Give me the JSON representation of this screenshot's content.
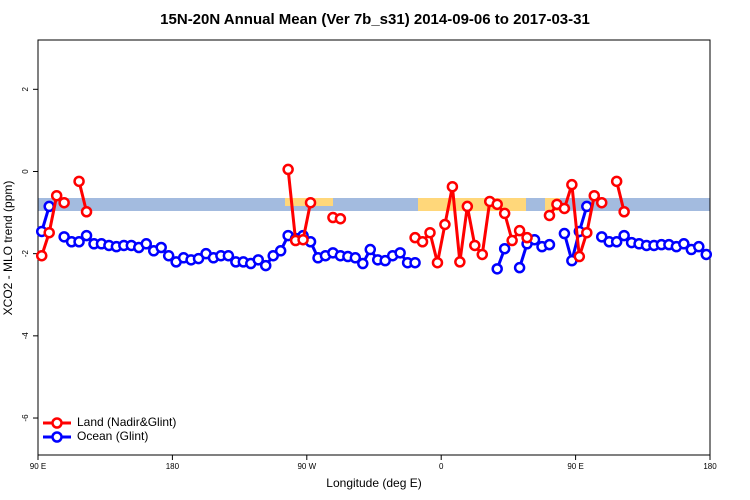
{
  "chart_data": {
    "type": "line",
    "title": "15N-20N Annual Mean (Ver 7b_s31)   2014-09-06 to 2017-03-31",
    "x_label": "Longitude (deg E)",
    "y_label": "XCO2 - MLO trend (ppm)",
    "xlim": [
      90,
      540
    ],
    "ylim": [
      -6.9,
      3.2
    ],
    "xticks": [
      {
        "value": 90,
        "label": "90 E"
      },
      180,
      {
        "value": 270,
        "label": "90 W"
      },
      {
        "value": 360,
        "label": "0"
      },
      {
        "value": 450,
        "label": "90 E"
      },
      {
        "value": 540,
        "label": "180"
      }
    ],
    "yticks": [
      -6,
      -4,
      -2,
      0,
      2
    ],
    "legend": "bottom-left",
    "x": [
      92.5,
      97.5,
      102.5,
      107.5,
      112.5,
      117.5,
      122.5,
      127.5,
      132.5,
      137.5,
      142.5,
      147.5,
      152.5,
      157.5,
      162.5,
      167.5,
      172.5,
      177.5,
      182.5,
      187.5,
      192.5,
      197.5,
      202.5,
      207.5,
      212.5,
      217.5,
      222.5,
      227.5,
      232.5,
      237.5,
      242.5,
      247.5,
      252.5,
      257.5,
      262.5,
      267.5,
      272.5,
      277.5,
      282.5,
      287.5,
      292.5,
      297.5,
      302.5,
      307.5,
      312.5,
      317.5,
      322.5,
      327.5,
      332.5,
      337.5,
      342.5,
      347.5,
      352.5,
      357.5,
      362.5,
      367.5,
      372.5,
      377.5,
      382.5,
      387.5,
      392.5,
      397.5,
      402.5,
      407.5,
      412.5,
      417.5,
      422.5,
      427.5,
      432.5,
      437.5,
      442.5,
      447.5,
      452.5,
      457.5,
      462.5,
      467.5,
      472.5,
      477.5,
      482.5,
      487.5,
      492.5,
      497.5,
      502.5,
      507.5,
      512.5,
      517.5,
      522.5,
      527.5,
      532.5,
      537.5
    ],
    "series": [
      {
        "name": "Land (Nadir&Glint)",
        "color": "#ff0000",
        "values": [
          -2.05,
          -1.49,
          -0.59,
          -0.76,
          null,
          -0.24,
          -0.98,
          null,
          null,
          null,
          null,
          null,
          null,
          null,
          null,
          null,
          null,
          null,
          null,
          null,
          null,
          null,
          null,
          null,
          null,
          null,
          null,
          null,
          null,
          null,
          null,
          null,
          null,
          0.05,
          -1.68,
          -1.66,
          -0.76,
          null,
          null,
          -1.12,
          -1.15,
          null,
          null,
          null,
          null,
          null,
          null,
          null,
          null,
          null,
          -1.61,
          -1.71,
          -1.49,
          -2.22,
          -1.29,
          -0.37,
          -2.2,
          -0.85,
          -1.8,
          -2.02,
          -0.73,
          -0.8,
          -1.02,
          -1.68,
          -1.44,
          -1.61,
          null,
          null,
          -1.07,
          -0.8,
          -0.9,
          -0.32,
          -2.07,
          -1.49,
          -0.59,
          -0.76,
          null,
          -0.24,
          -0.98,
          null,
          null,
          null,
          null,
          null,
          null,
          null,
          null,
          null,
          null,
          null
        ]
      },
      {
        "name": "Ocean (Glint)",
        "color": "#0000ff",
        "values": [
          -1.46,
          -0.85,
          null,
          -1.59,
          -1.71,
          -1.71,
          -1.56,
          -1.76,
          -1.76,
          -1.8,
          -1.83,
          -1.8,
          -1.8,
          -1.85,
          -1.76,
          -1.93,
          -1.85,
          -2.05,
          -2.2,
          -2.1,
          -2.15,
          -2.12,
          -2.0,
          -2.1,
          -2.05,
          -2.05,
          -2.2,
          -2.2,
          -2.24,
          -2.15,
          -2.29,
          -2.05,
          -1.93,
          -1.56,
          -1.63,
          -1.56,
          -1.71,
          -2.1,
          -2.05,
          -1.98,
          -2.05,
          -2.07,
          -2.1,
          -2.24,
          -1.9,
          -2.15,
          -2.17,
          -2.05,
          -1.98,
          -2.22,
          -2.22,
          null,
          null,
          null,
          null,
          null,
          null,
          null,
          null,
          null,
          null,
          -2.37,
          -1.88,
          null,
          -2.34,
          -1.76,
          -1.66,
          -1.83,
          -1.78,
          null,
          -1.51,
          -2.17,
          -1.46,
          -0.85,
          null,
          -1.59,
          -1.71,
          -1.71,
          -1.56,
          -1.73,
          -1.76,
          -1.8,
          -1.8,
          -1.78,
          -1.78,
          -1.83,
          -1.76,
          -1.9,
          -1.83,
          -2.02
        ]
      }
    ]
  }
}
